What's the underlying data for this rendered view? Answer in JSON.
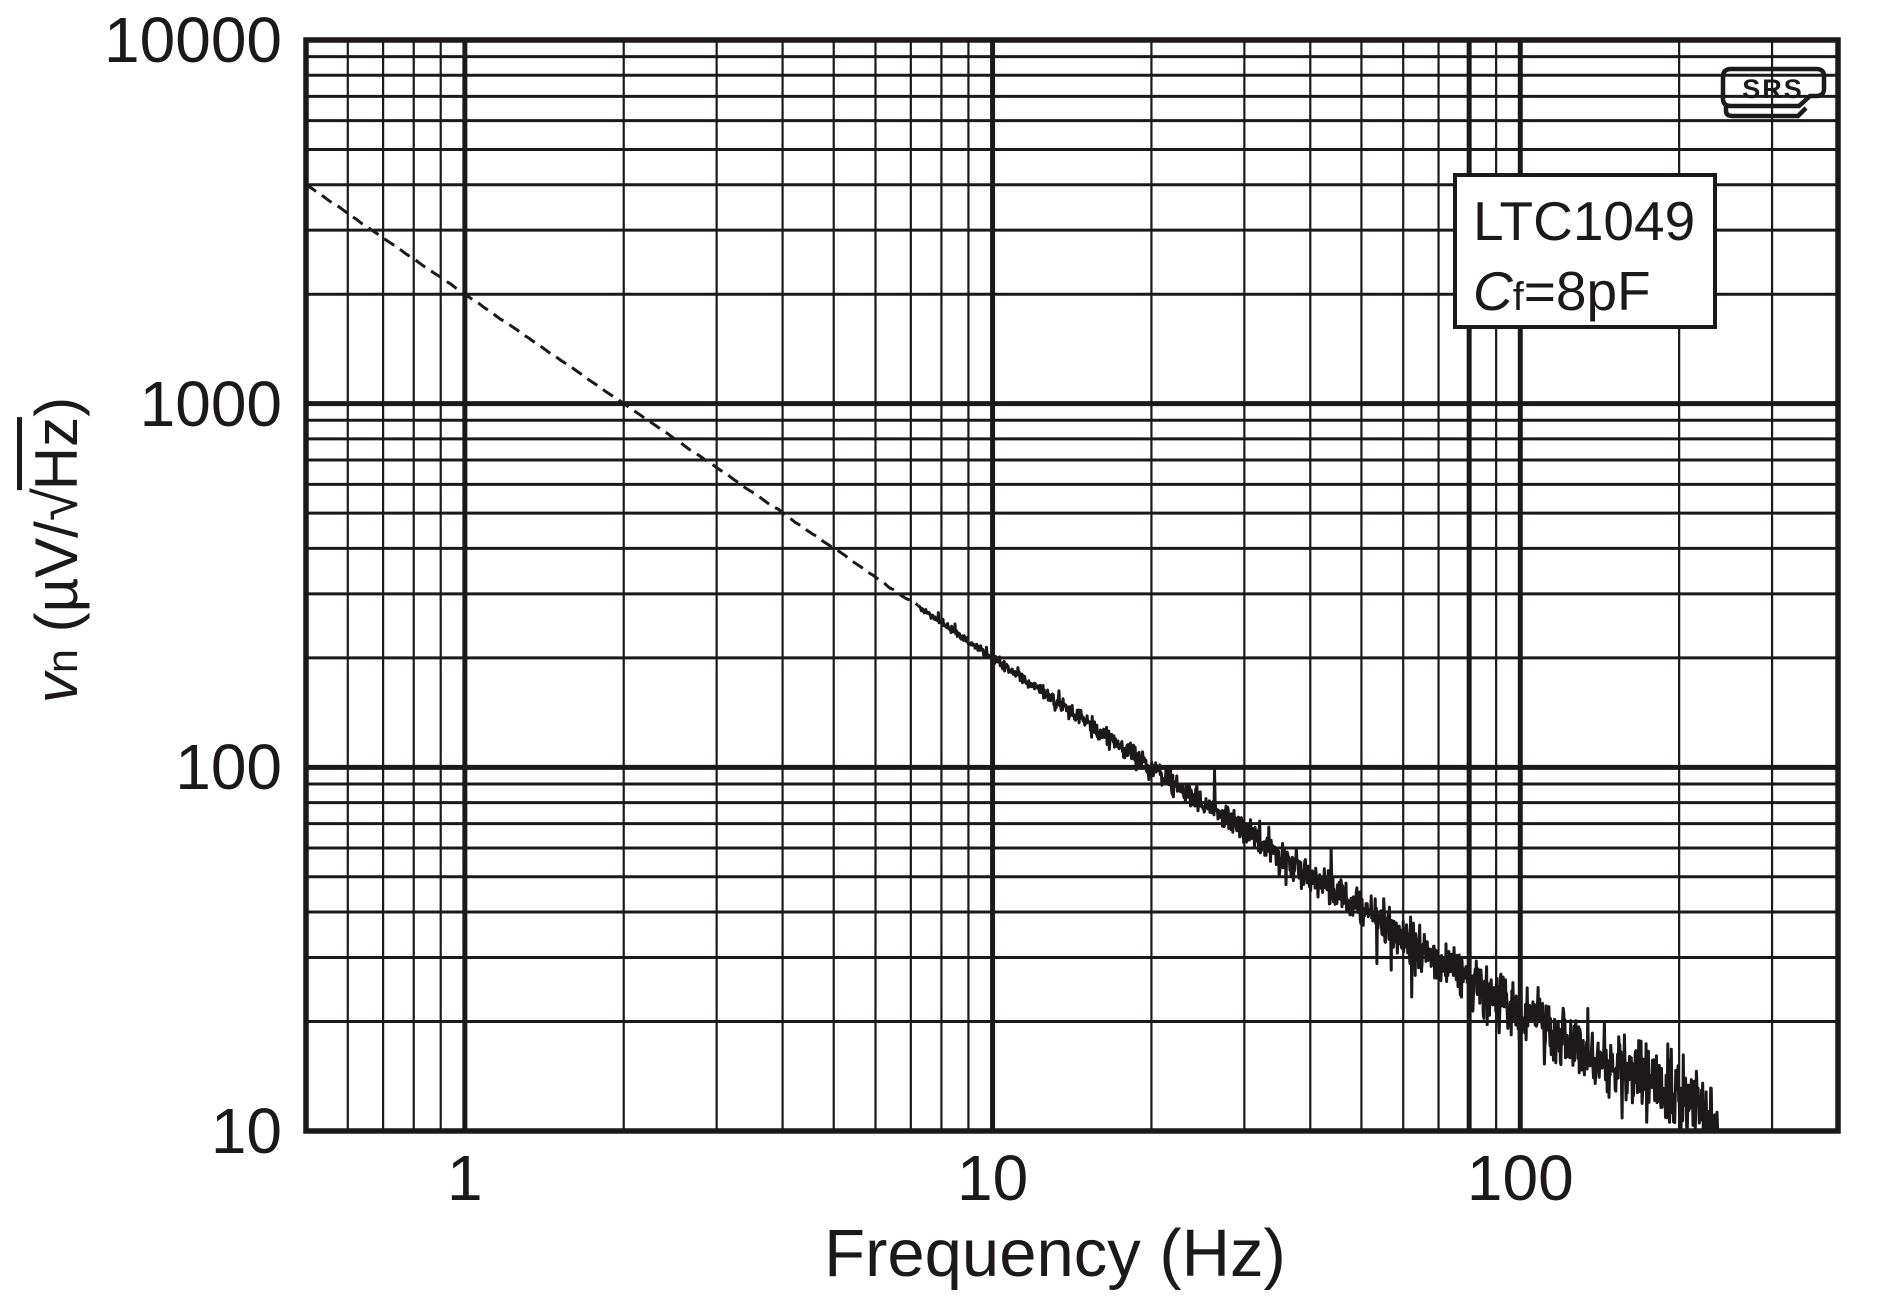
{
  "figure": {
    "background": "#ffffff",
    "ink_color": "#1d191a",
    "description": "Log-log input noise spectral density plot"
  },
  "chart_data": {
    "type": "line",
    "title": "",
    "xlabel": "Frequency (Hz)",
    "ylabel": "vn (uV/sqrt(Hz))",
    "x_axis": {
      "scale": "log",
      "min": 0.5,
      "max": 400,
      "tick_values": [
        1,
        10,
        100
      ],
      "tick_labels": [
        "1",
        "10",
        "100"
      ],
      "minor_gridlines": [
        0.6,
        0.7,
        0.8,
        0.9,
        2,
        3,
        4,
        5,
        6,
        7,
        8,
        9,
        20,
        30,
        40,
        50,
        60,
        70,
        90,
        200,
        300
      ],
      "major_gridlines": [
        1,
        10,
        100
      ],
      "bold_minor_gridlines": [
        80
      ],
      "grid": "on"
    },
    "y_axis": {
      "scale": "log",
      "min": 10,
      "max": 10000,
      "tick_values": [
        10000,
        1000,
        100,
        10
      ],
      "tick_labels": [
        "10000",
        "1000",
        "100",
        "10"
      ],
      "minor_gridlines": [
        20,
        30,
        40,
        50,
        60,
        70,
        80,
        90,
        200,
        300,
        400,
        500,
        600,
        700,
        800,
        900,
        2000,
        3000,
        4000,
        5000,
        6000,
        7000,
        8000,
        9000
      ],
      "major_gridlines": [
        100,
        1000
      ],
      "grid": "on"
    },
    "series": [
      {
        "name": "LTC1049 Cf=8pF input noise",
        "model": "vn ~ 2000/f with ~10 uV/rtHz floor, trace dashed below ~7 Hz, noisy band at high f",
        "points": [
          [
            0.5,
            4000
          ],
          [
            0.6,
            3333
          ],
          [
            0.7,
            2857
          ],
          [
            0.8,
            2500
          ],
          [
            0.9,
            2222
          ],
          [
            1,
            2000
          ],
          [
            1.2,
            1667
          ],
          [
            1.5,
            1333
          ],
          [
            2,
            1000
          ],
          [
            2.5,
            800
          ],
          [
            3,
            667
          ],
          [
            4,
            500
          ],
          [
            5,
            400
          ],
          [
            6,
            333
          ],
          [
            7,
            286
          ],
          [
            8,
            250
          ],
          [
            9,
            222
          ],
          [
            10,
            200
          ],
          [
            12,
            167
          ],
          [
            15,
            133
          ],
          [
            20,
            100
          ],
          [
            25,
            80
          ],
          [
            30,
            67
          ],
          [
            40,
            50
          ],
          [
            50,
            40.6
          ],
          [
            60,
            34
          ],
          [
            70,
            29.4
          ],
          [
            80,
            26
          ],
          [
            90,
            23.3
          ],
          [
            100,
            21.2
          ],
          [
            120,
            18.1
          ],
          [
            150,
            15.1
          ],
          [
            180,
            13.2
          ],
          [
            200,
            12.2
          ],
          [
            220,
            11.5
          ],
          [
            236,
            11
          ]
        ]
      }
    ],
    "style": {
      "dashed_below_hz": 7.2,
      "trace_end_hz": 236.5,
      "noise_profile_log10_sigma": [
        [
          0.5,
          0.0008
        ],
        [
          3,
          0.001
        ],
        [
          5,
          0.0018
        ],
        [
          8,
          0.004
        ],
        [
          12,
          0.009
        ],
        [
          20,
          0.015
        ],
        [
          30,
          0.019
        ],
        [
          50,
          0.025
        ],
        [
          80,
          0.031
        ],
        [
          120,
          0.041
        ],
        [
          180,
          0.049
        ],
        [
          240,
          0.053
        ]
      ]
    },
    "legend_position": "top-right-box"
  },
  "x_label": {
    "text": "Frequency (Hz)"
  },
  "y_label": {
    "v": "v",
    "n": "n",
    "open": " (µV/",
    "sqrt": "√",
    "hz": "Hz",
    "close": ")"
  },
  "legend": {
    "line1": "LTC1049",
    "line2_c": "C",
    "line2_sub": "f",
    "line2_rest": "=8pF"
  },
  "logo": {
    "text": "SRS"
  }
}
